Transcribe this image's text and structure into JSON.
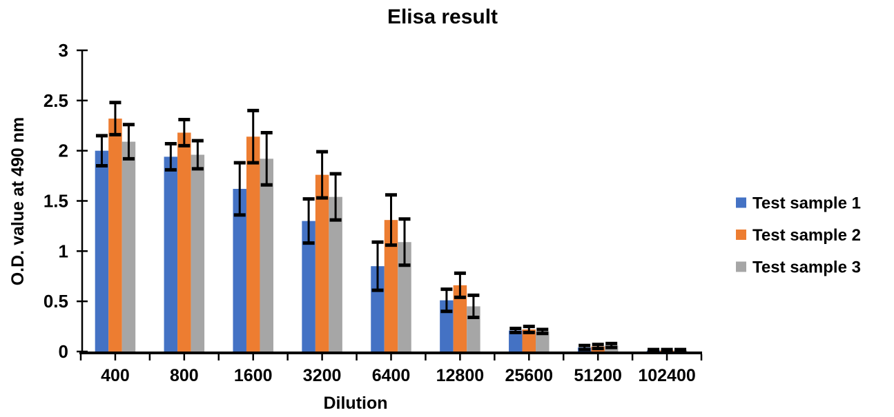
{
  "chart_data": {
    "type": "bar",
    "title": "Elisa result",
    "xlabel": "Dilution",
    "ylabel": "O.D. value at 490 nm",
    "categories": [
      "400",
      "800",
      "1600",
      "3200",
      "6400",
      "12800",
      "25600",
      "51200",
      "102400"
    ],
    "series": [
      {
        "name": "Test sample 1",
        "color": "#4472C4",
        "values": [
          2.0,
          1.94,
          1.62,
          1.3,
          0.85,
          0.51,
          0.21,
          0.04,
          0.01
        ],
        "errors": [
          0.15,
          0.13,
          0.26,
          0.22,
          0.24,
          0.11,
          0.02,
          0.02,
          0.01
        ]
      },
      {
        "name": "Test sample 2",
        "color": "#ED7D31",
        "values": [
          2.32,
          2.18,
          2.14,
          1.76,
          1.31,
          0.66,
          0.22,
          0.05,
          0.01
        ],
        "errors": [
          0.16,
          0.13,
          0.26,
          0.23,
          0.25,
          0.12,
          0.03,
          0.02,
          0.01
        ]
      },
      {
        "name": "Test sample 3",
        "color": "#A6A6A6",
        "values": [
          2.09,
          1.96,
          1.92,
          1.54,
          1.09,
          0.45,
          0.2,
          0.06,
          0.01
        ],
        "errors": [
          0.17,
          0.14,
          0.26,
          0.23,
          0.23,
          0.11,
          0.02,
          0.02,
          0.01
        ]
      }
    ],
    "ylim": [
      0,
      3
    ],
    "y_ticks": [
      0,
      0.5,
      1,
      1.5,
      2,
      2.5,
      3
    ],
    "y_tick_labels": [
      "0",
      "0.5",
      "1",
      "1.5",
      "2",
      "2.5",
      "3"
    ],
    "grid": false,
    "legend_position": "right",
    "error_bar_color": "#000000",
    "axis_color": "#000000",
    "background_color": "#FFFFFF"
  }
}
